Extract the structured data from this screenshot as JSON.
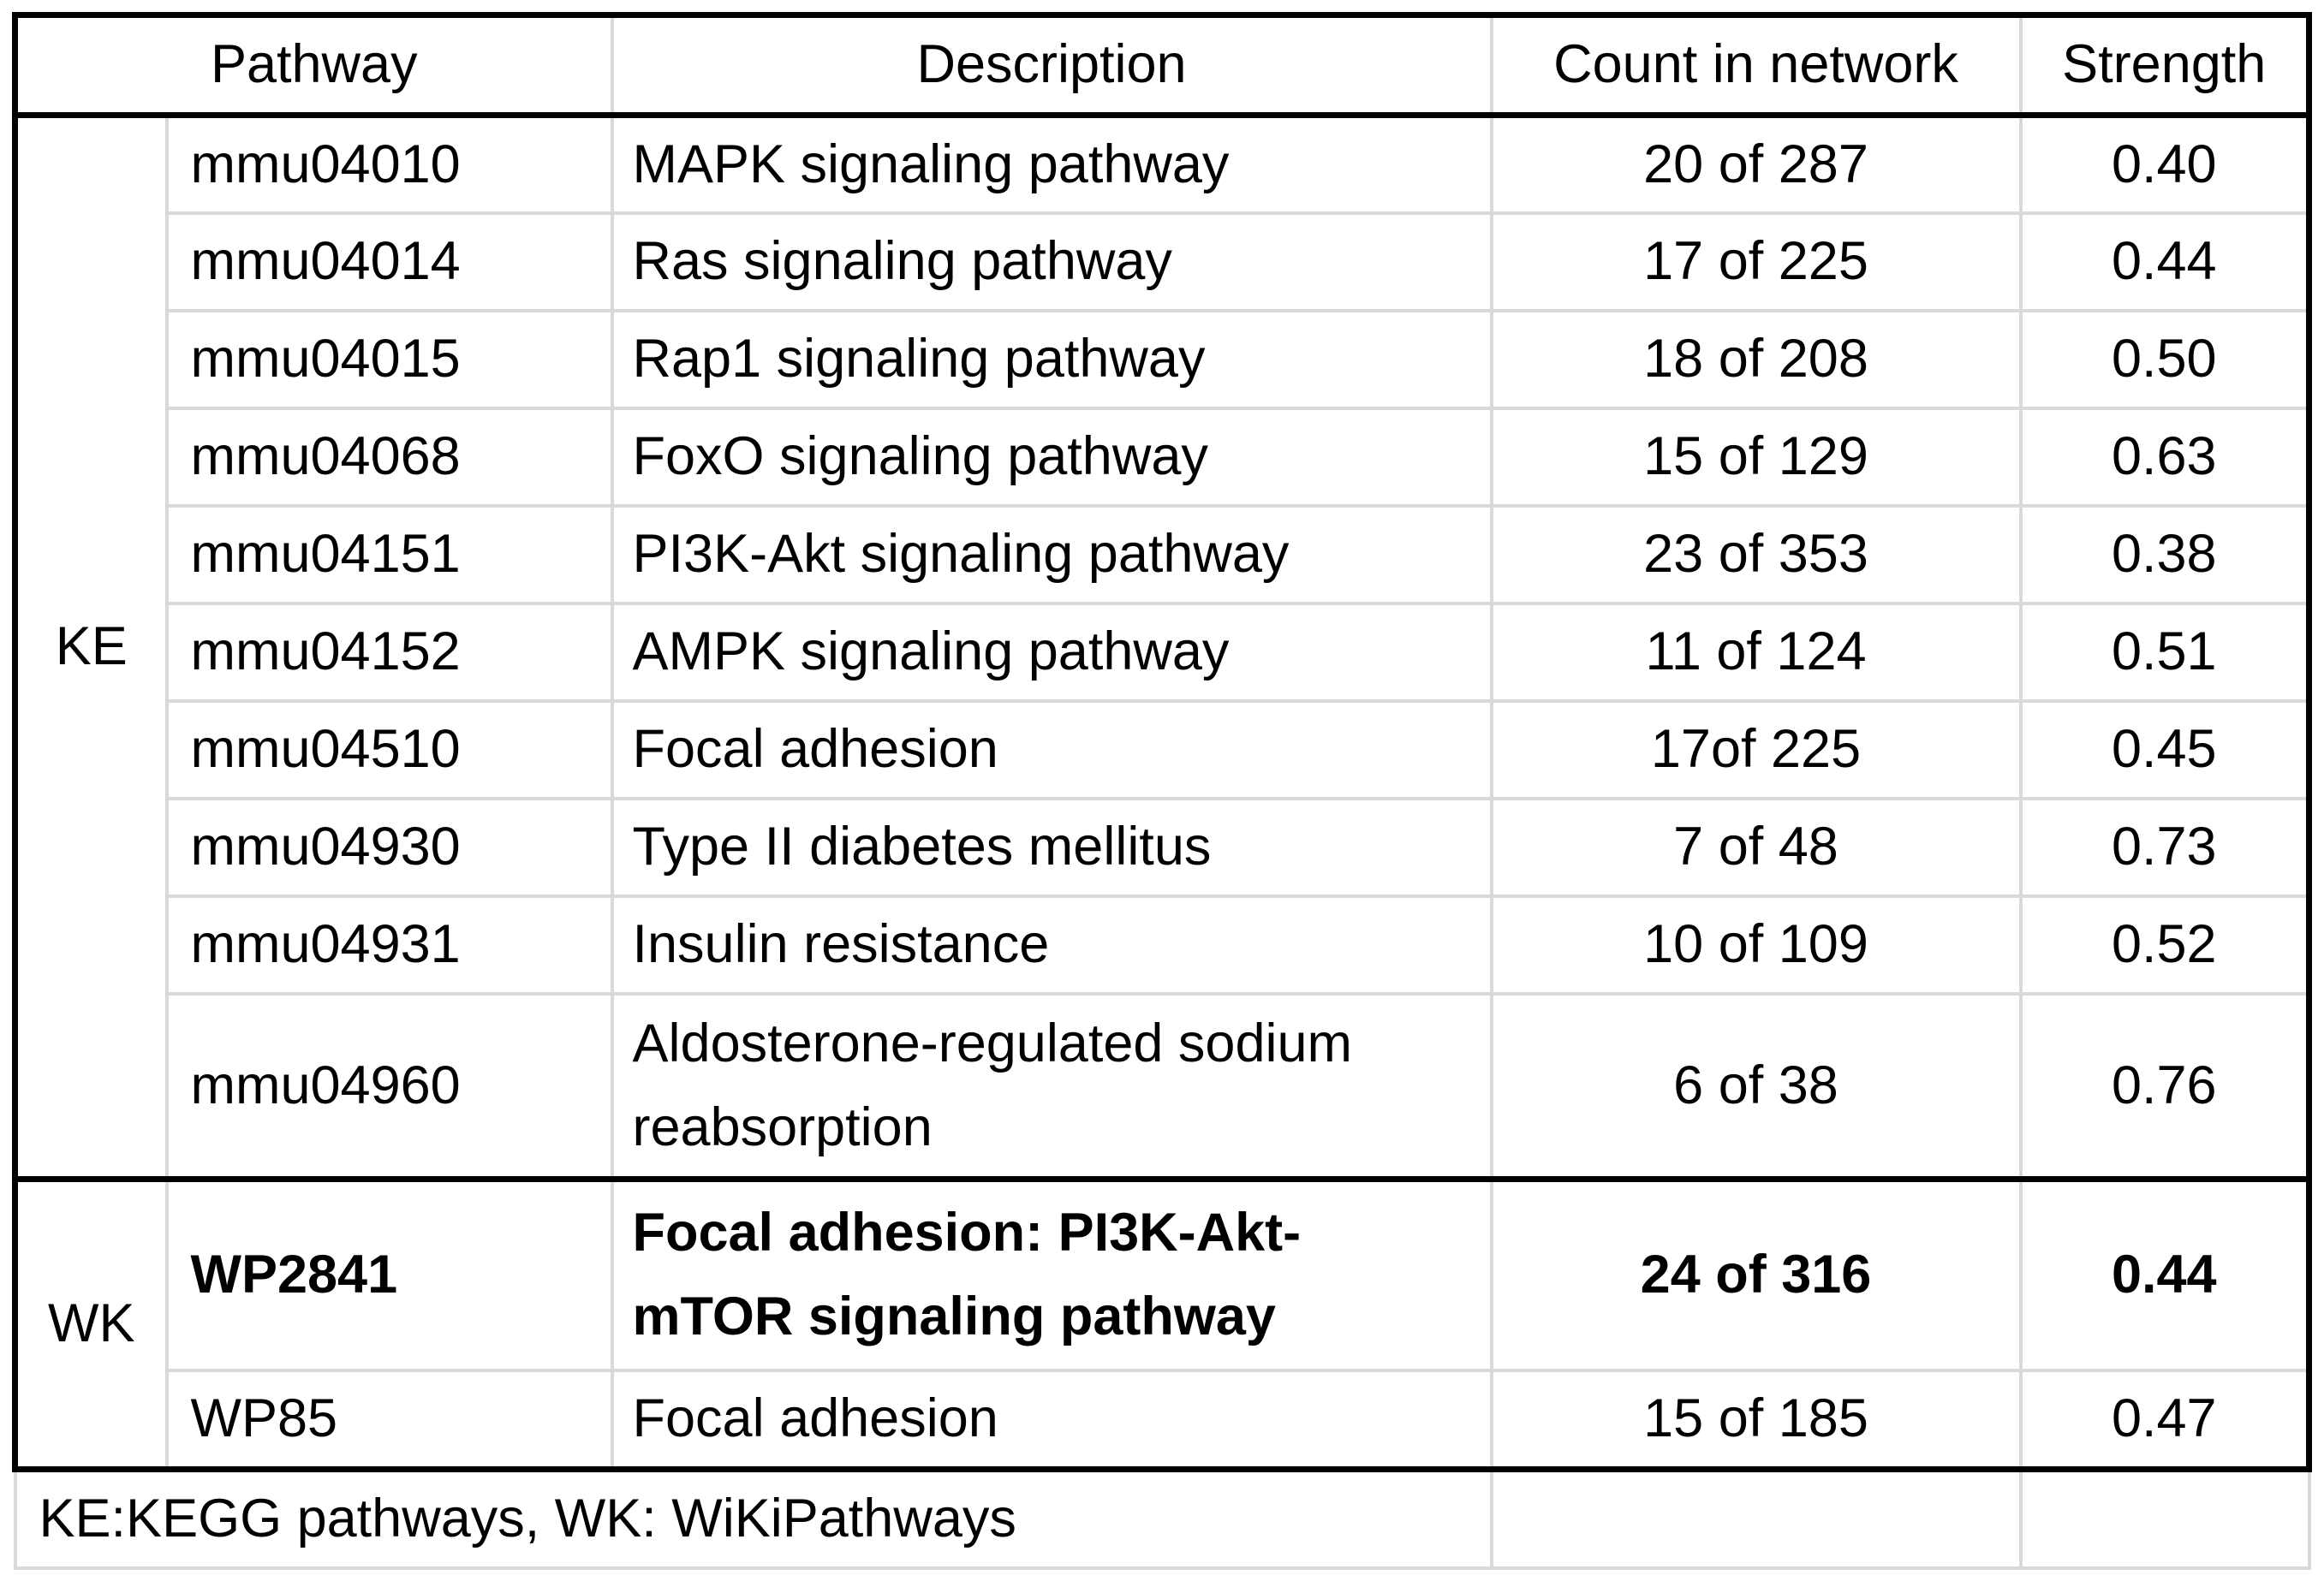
{
  "table": {
    "headers": {
      "pathway": "Pathway",
      "description": "Description",
      "count": "Count in network",
      "strength": "Strength"
    },
    "groups": [
      {
        "label": "KE",
        "rows": [
          {
            "id": "mmu04010",
            "description": "MAPK signaling pathway",
            "count": "20 of 287",
            "strength": "0.40"
          },
          {
            "id": "mmu04014",
            "description": "Ras signaling pathway",
            "count": "17 of 225",
            "strength": "0.44"
          },
          {
            "id": "mmu04015",
            "description": "Rap1 signaling pathway",
            "count": "18 of 208",
            "strength": "0.50"
          },
          {
            "id": "mmu04068",
            "description": "FoxO signaling pathway",
            "count": "15 of 129",
            "strength": "0.63"
          },
          {
            "id": "mmu04151",
            "description": "PI3K-Akt signaling pathway",
            "count": "23 of 353",
            "strength": "0.38"
          },
          {
            "id": "mmu04152",
            "description": "AMPK signaling pathway",
            "count": "11 of 124",
            "strength": "0.51"
          },
          {
            "id": "mmu04510",
            "description": "Focal adhesion",
            "count": "17of 225",
            "strength": "0.45"
          },
          {
            "id": "mmu04930",
            "description": "Type II diabetes mellitus",
            "count": "7 of 48",
            "strength": "0.73"
          },
          {
            "id": "mmu04931",
            "description": "Insulin resistance",
            "count": "10 of 109",
            "strength": "0.52"
          },
          {
            "id": "mmu04960",
            "description": "Aldosterone-regulated sodium reabsorption",
            "count": "6 of 38",
            "strength": "0.76"
          }
        ]
      },
      {
        "label": "WK",
        "rows": [
          {
            "id": "WP2841",
            "description": "Focal adhesion: PI3K-Akt-mTOR signaling pathway",
            "count": "24 of 316",
            "strength": "0.44",
            "bold": true
          },
          {
            "id": "WP85",
            "description": "Focal adhesion",
            "count": "15 of 185",
            "strength": "0.47"
          }
        ]
      }
    ],
    "footnote": "KE:KEGG pathways, WK: WiKiPathways"
  },
  "colors": {
    "background": "#ffffff",
    "text": "#000000",
    "border_light": "#d9d9d9",
    "border_dark": "#000000"
  }
}
